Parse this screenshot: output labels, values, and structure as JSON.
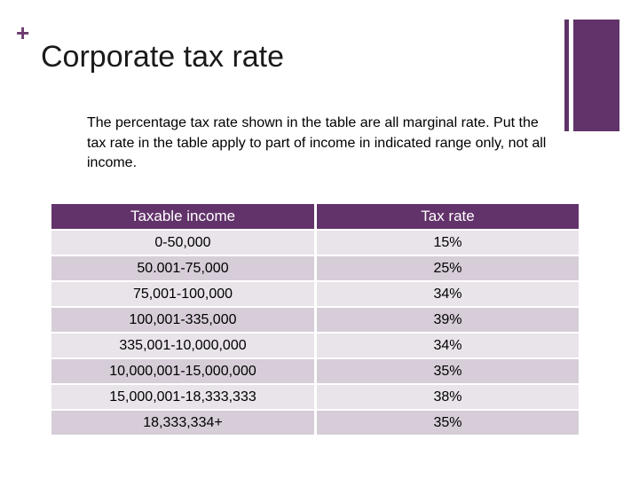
{
  "slide": {
    "plus_symbol": "+",
    "title": "Corporate tax rate",
    "intro": "The percentage tax rate shown in the table are all marginal rate. Put the tax rate in the table apply to part of income in indicated range only, not all income."
  },
  "table": {
    "headers": [
      "Taxable income",
      "Tax rate"
    ],
    "rows": [
      {
        "income": "0-50,000",
        "rate": "15%"
      },
      {
        "income": "50.001-75,000",
        "rate": "25%"
      },
      {
        "income": "75,001-100,000",
        "rate": "34%"
      },
      {
        "income": "100,001-335,000",
        "rate": "39%"
      },
      {
        "income": "335,001-10,000,000",
        "rate": "34%"
      },
      {
        "income": "10,000,001-15,000,000",
        "rate": "35%"
      },
      {
        "income": "15,000,001-18,333,333",
        "rate": "38%"
      },
      {
        "income": "18,333,334+",
        "rate": "35%"
      }
    ]
  },
  "colors": {
    "accent": "#62336a",
    "row_light": "#e9e3ea",
    "row_dark": "#d6cdd8"
  }
}
